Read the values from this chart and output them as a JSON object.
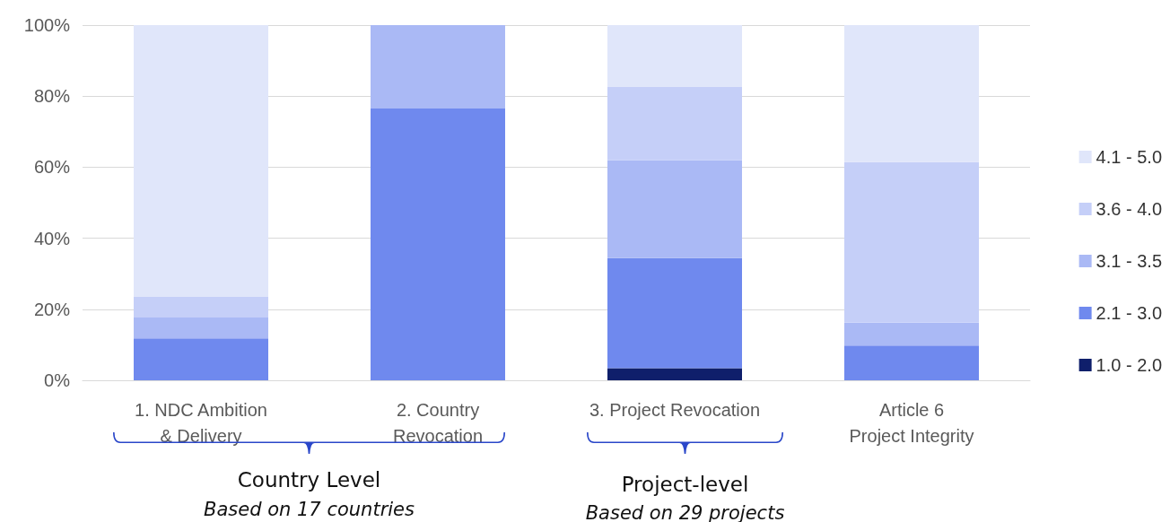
{
  "chart_data": {
    "type": "bar",
    "stacked": true,
    "categories": [
      "1. NDC Ambition\n& Delivery",
      "2. Country\nRevocation",
      "3. Project Revocation",
      "Article 6\nProject Integrity"
    ],
    "series": [
      {
        "name": "1.0 - 2.0",
        "color": "#0f1f6b",
        "values": [
          0,
          0,
          3.4,
          0
        ]
      },
      {
        "name": "2.1 - 3.0",
        "color": "#6f89ee",
        "values": [
          11.8,
          76.5,
          31.0,
          9.8
        ]
      },
      {
        "name": "3.1 - 3.5",
        "color": "#aab9f5",
        "values": [
          5.9,
          23.5,
          27.6,
          6.4
        ]
      },
      {
        "name": "3.6 - 4.0",
        "color": "#c5cff8",
        "values": [
          5.9,
          0,
          20.7,
          45.2
        ]
      },
      {
        "name": "4.1 - 5.0",
        "color": "#e0e6fa",
        "values": [
          76.4,
          0,
          17.3,
          38.6
        ]
      }
    ],
    "ylim": [
      0,
      100
    ],
    "yticks": [
      {
        "value": 0,
        "label": "0%"
      },
      {
        "value": 20,
        "label": "20%"
      },
      {
        "value": 40,
        "label": "40%"
      },
      {
        "value": 60,
        "label": "60%"
      },
      {
        "value": 80,
        "label": "80%"
      },
      {
        "value": 100,
        "label": "100%"
      }
    ],
    "grid": "y",
    "legend": "right",
    "annotations": [
      "Country Level",
      "Based on 17 countries",
      "Project-level",
      "Based on 29 projects"
    ]
  }
}
